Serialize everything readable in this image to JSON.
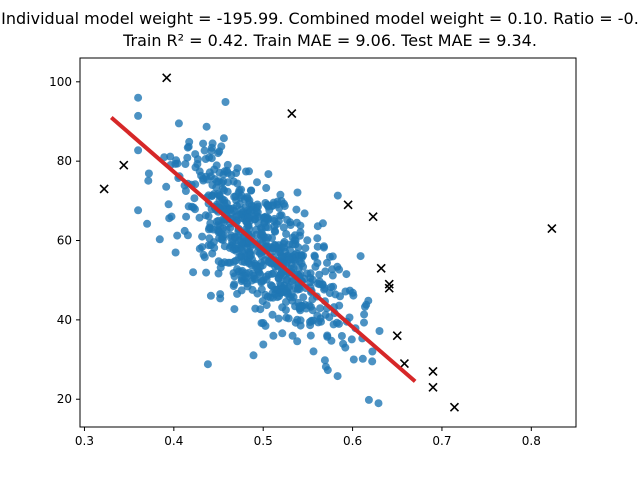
{
  "chart_data": {
    "type": "scatter",
    "title_lines": [
      "Individual model weight = -195.99. Combined model weight  = 0.10. Ratio = -0.",
      "Train R² = 0.42. Train MAE = 9.06. Test MAE = 9.34."
    ],
    "xlim": [
      0.295,
      0.85
    ],
    "ylim": [
      13,
      106
    ],
    "xticks": [
      0.3,
      0.4,
      0.5,
      0.6,
      0.7,
      0.8
    ],
    "xtick_labels": [
      "0.3",
      "0.4",
      "0.5",
      "0.6",
      "0.7",
      "0.8"
    ],
    "yticks": [
      20,
      40,
      60,
      80,
      100
    ],
    "ytick_labels": [
      "20",
      "40",
      "60",
      "80",
      "100"
    ],
    "grid": false,
    "series": [
      {
        "role": "train_points",
        "marker": "circle",
        "color": "#1f77b4",
        "count_estimate": 700,
        "x_center": 0.5,
        "x_spread": 0.05,
        "y_center": 58,
        "y_spread": 13
      },
      {
        "role": "test_points",
        "marker": "x",
        "color": "#000000",
        "points": [
          [
            0.322,
            73
          ],
          [
            0.344,
            79
          ],
          [
            0.392,
            101
          ],
          [
            0.532,
            92
          ],
          [
            0.595,
            69
          ],
          [
            0.623,
            66
          ],
          [
            0.632,
            53
          ],
          [
            0.641,
            48
          ],
          [
            0.641,
            49
          ],
          [
            0.65,
            36
          ],
          [
            0.658,
            29
          ],
          [
            0.69,
            27
          ],
          [
            0.69,
            23
          ],
          [
            0.714,
            18
          ],
          [
            0.823,
            63
          ]
        ]
      },
      {
        "role": "fit_line",
        "marker": "line",
        "color": "#d62728",
        "points": [
          [
            0.33,
            91
          ],
          [
            0.67,
            24.5
          ]
        ]
      }
    ]
  }
}
